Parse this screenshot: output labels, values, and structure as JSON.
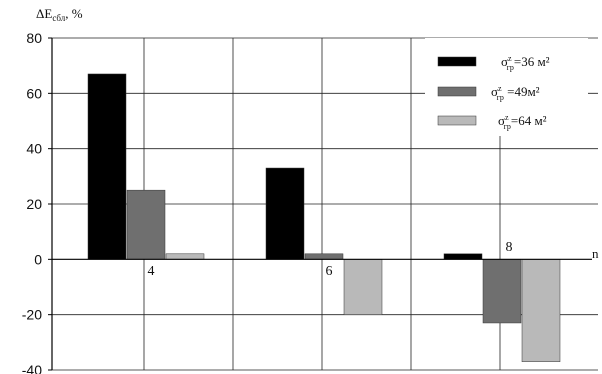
{
  "chart_data": {
    "type": "bar",
    "ylabel": "ΔE",
    "ylabel_sub": "сбл",
    "ylabel_unit": ", %",
    "xlabel": "n",
    "categories": [
      "4",
      "6",
      "8"
    ],
    "ylim": [
      -40,
      80
    ],
    "yticks": [
      80,
      60,
      40,
      20,
      0,
      -20,
      -40
    ],
    "grid": true,
    "legend_position": "top-right",
    "series": [
      {
        "name": "σ",
        "sup": "z",
        "sub": "гр",
        "rest": "=36 м²",
        "color": "#000000",
        "values": [
          67,
          33,
          2
        ]
      },
      {
        "name": "σ",
        "sup": "z",
        "sub": "гр",
        "rest": " =49м²",
        "color": "#6f6f6f",
        "values": [
          25,
          2,
          -23
        ]
      },
      {
        "name": "σ",
        "sup": "z",
        "sub": "гр",
        "rest": "=64 м²",
        "color": "#b9b9b9",
        "values": [
          2,
          -20,
          -37
        ]
      }
    ]
  }
}
